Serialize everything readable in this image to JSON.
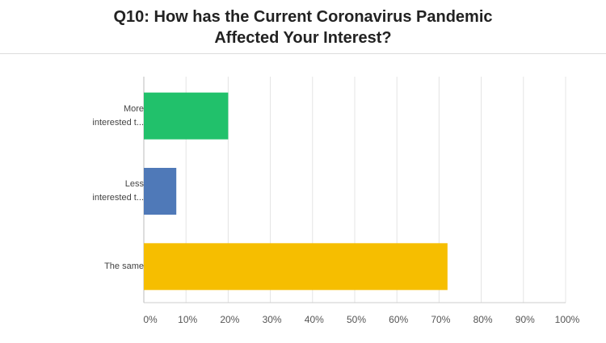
{
  "chart_data": {
    "type": "hbar",
    "title": "Q10: How has the Current Coronavirus Pandemic Affected Your Interest?",
    "categories": [
      "More interested t...",
      "Less interested t...",
      "The same"
    ],
    "values": [
      20,
      7.7,
      72
    ],
    "colors": [
      "#21c16b",
      "#4f79b8",
      "#f6be00"
    ],
    "xlim": [
      0,
      100
    ],
    "xticks": [
      {
        "value": 0,
        "label": "0%"
      },
      {
        "value": 10,
        "label": "10%"
      },
      {
        "value": 20,
        "label": "20%"
      },
      {
        "value": 30,
        "label": "30%"
      },
      {
        "value": 40,
        "label": "40%"
      },
      {
        "value": 50,
        "label": "50%"
      },
      {
        "value": 60,
        "label": "60%"
      },
      {
        "value": 70,
        "label": "70%"
      },
      {
        "value": 80,
        "label": "80%"
      },
      {
        "value": 90,
        "label": "90%"
      },
      {
        "value": 100,
        "label": "100%"
      }
    ],
    "grid": true
  }
}
